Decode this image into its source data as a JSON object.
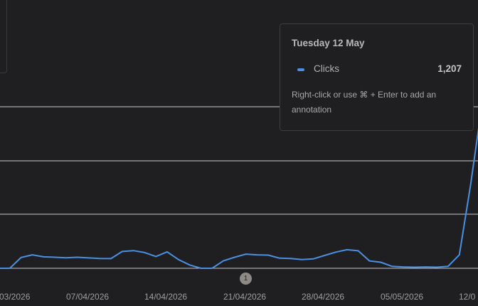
{
  "chart_data": {
    "type": "line",
    "series": [
      {
        "name": "Clicks",
        "color": "#4a90e2",
        "values": [
          0,
          0,
          80,
          100,
          85,
          82,
          78,
          82,
          77,
          73,
          72,
          125,
          131,
          117,
          88,
          122,
          65,
          25,
          0,
          0,
          55,
          82,
          105,
          100,
          98,
          75,
          73,
          65,
          70,
          95,
          120,
          138,
          130,
          55,
          45,
          15,
          10,
          8,
          10,
          8,
          15,
          100,
          620,
          1207
        ]
      }
    ],
    "x_tick_labels": [
      "03/2026",
      "07/04/2026",
      "14/04/2026",
      "21/04/2026",
      "28/04/2026",
      "05/05/2026",
      "12/0"
    ],
    "ylim": [
      0,
      1200
    ],
    "grid": true
  },
  "tooltip": {
    "title": "Tuesday 12 May",
    "series_label": "Clicks",
    "series_value": "1,207",
    "hint": "Right-click or use ⌘ + Enter to add an annotation"
  },
  "annotation_marker": {
    "label": "1"
  },
  "colors": {
    "background": "#1f1f21",
    "line": "#4a90e2",
    "grid": "#c8c8c8",
    "marker": "#8e8a86"
  }
}
